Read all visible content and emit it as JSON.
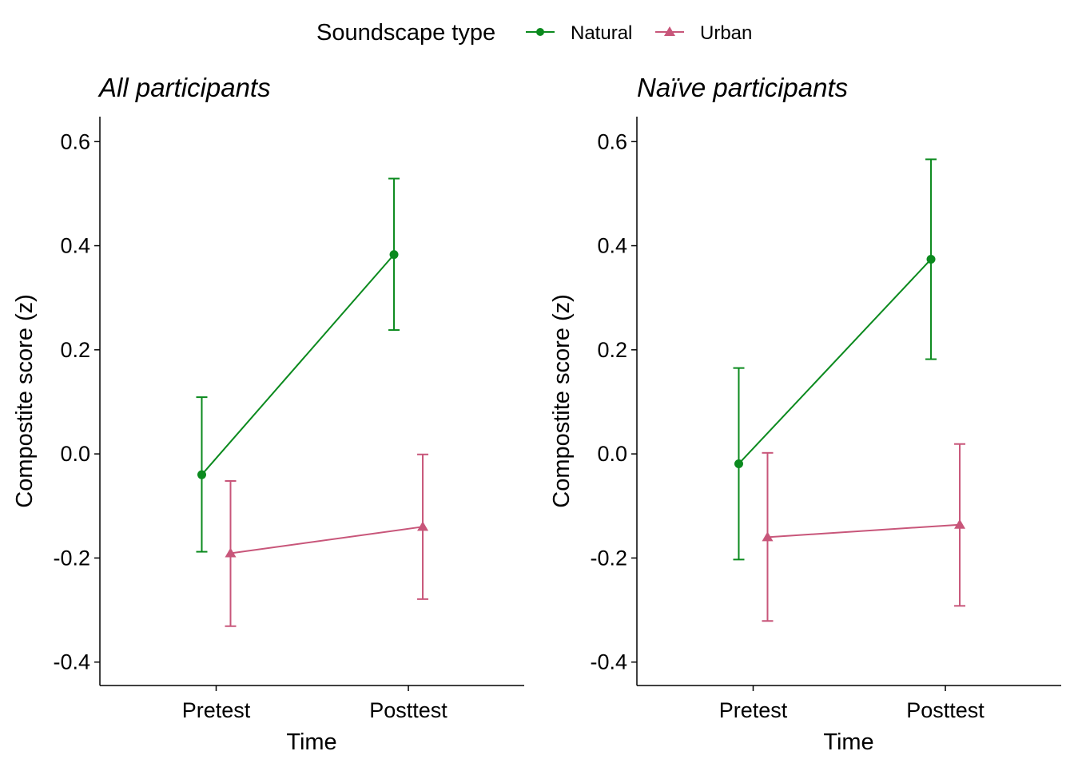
{
  "legend": {
    "title": "Soundscape type",
    "items": [
      {
        "label": "Natural",
        "color": "#0b8a1e",
        "shape": "circle"
      },
      {
        "label": "Urban",
        "color": "#c8567a",
        "shape": "triangle"
      }
    ]
  },
  "chart_data": [
    {
      "type": "line",
      "title": "All participants",
      "xlabel": "Time",
      "ylabel": "Compostite score (z)",
      "categories": [
        "Pretest",
        "Posttest"
      ],
      "yticks": [
        "-0.4",
        "-0.2",
        "0.0",
        "0.2",
        "0.4",
        "0.6"
      ],
      "ylim": [
        -0.445,
        0.648
      ],
      "grid": false,
      "legend_position": "top",
      "series": [
        {
          "name": "Natural",
          "color": "#0b8a1e",
          "marker": "circle",
          "values": [
            -0.04,
            0.383
          ],
          "lower": [
            -0.188,
            0.238
          ],
          "upper": [
            0.109,
            0.529
          ]
        },
        {
          "name": "Urban",
          "color": "#c8567a",
          "marker": "triangle",
          "values": [
            -0.191,
            -0.14
          ],
          "lower": [
            -0.331,
            -0.279
          ],
          "upper": [
            -0.052,
            -0.001
          ]
        }
      ]
    },
    {
      "type": "line",
      "title": "Naïve participants",
      "xlabel": "Time",
      "ylabel": "Compostite score (z)",
      "categories": [
        "Pretest",
        "Posttest"
      ],
      "yticks": [
        "-0.4",
        "-0.2",
        "0.0",
        "0.2",
        "0.4",
        "0.6"
      ],
      "ylim": [
        -0.445,
        0.648
      ],
      "grid": false,
      "legend_position": "top",
      "series": [
        {
          "name": "Natural",
          "color": "#0b8a1e",
          "marker": "circle",
          "values": [
            -0.019,
            0.374
          ],
          "lower": [
            -0.203,
            0.182
          ],
          "upper": [
            0.165,
            0.566
          ]
        },
        {
          "name": "Urban",
          "color": "#c8567a",
          "marker": "triangle",
          "values": [
            -0.16,
            -0.136
          ],
          "lower": [
            -0.321,
            -0.292
          ],
          "upper": [
            0.002,
            0.019
          ]
        }
      ]
    }
  ]
}
